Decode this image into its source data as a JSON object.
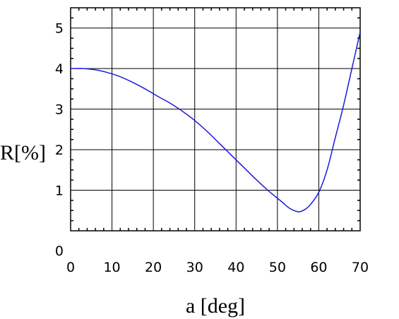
{
  "chart_data": {
    "type": "line",
    "title": "",
    "xlabel": "a [deg]",
    "ylabel": "R[%]",
    "xlim": [
      0,
      70
    ],
    "ylim": [
      0,
      5.5
    ],
    "grid": true,
    "x_ticks": [
      "0",
      "10",
      "20",
      "30",
      "40",
      "50",
      "60",
      "70"
    ],
    "y_ticks": [
      "0",
      "1",
      "2",
      "3",
      "4",
      "5"
    ],
    "series": [
      {
        "color": "#1a1adb",
        "x": [
          0,
          3,
          6,
          9,
          12,
          15,
          18,
          21,
          24,
          27,
          30,
          33,
          36,
          39,
          42,
          45,
          48,
          51,
          53,
          55,
          56,
          57,
          58,
          60,
          62,
          64,
          66,
          68,
          70
        ],
        "y": [
          4.0,
          4.0,
          3.97,
          3.9,
          3.8,
          3.66,
          3.5,
          3.32,
          3.15,
          2.95,
          2.72,
          2.45,
          2.15,
          1.85,
          1.55,
          1.25,
          0.97,
          0.72,
          0.55,
          0.47,
          0.49,
          0.55,
          0.65,
          0.95,
          1.5,
          2.3,
          3.1,
          4.0,
          4.9
        ]
      }
    ]
  }
}
